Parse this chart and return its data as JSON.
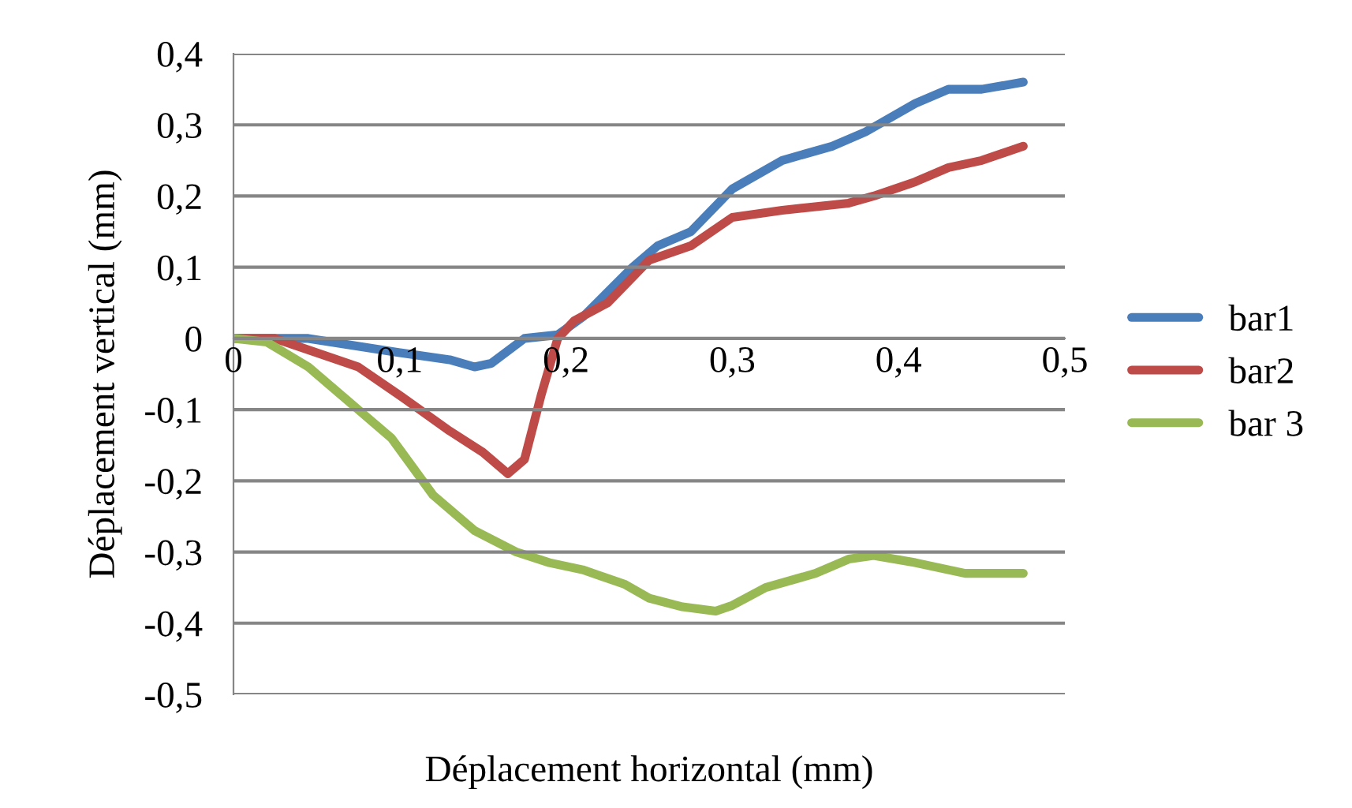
{
  "chart_data": {
    "type": "line",
    "xlabel": "Déplacement horizontal (mm)",
    "ylabel": "Déplacement vertical (mm)",
    "xlim": [
      0,
      0.5
    ],
    "ylim": [
      -0.5,
      0.4
    ],
    "xticks": [
      {
        "value": 0,
        "label": "0"
      },
      {
        "value": 0.1,
        "label": "0,1"
      },
      {
        "value": 0.2,
        "label": "0,2"
      },
      {
        "value": 0.3,
        "label": "0,3"
      },
      {
        "value": 0.4,
        "label": "0,4"
      },
      {
        "value": 0.5,
        "label": "0,5"
      }
    ],
    "yticks": [
      {
        "value": -0.5,
        "label": "-0,5"
      },
      {
        "value": -0.4,
        "label": "-0,4"
      },
      {
        "value": -0.3,
        "label": "-0,3"
      },
      {
        "value": -0.2,
        "label": "-0,2"
      },
      {
        "value": -0.1,
        "label": "-0,1"
      },
      {
        "value": 0,
        "label": "0"
      },
      {
        "value": 0.1,
        "label": "0,1"
      },
      {
        "value": 0.2,
        "label": "0,2"
      },
      {
        "value": 0.3,
        "label": "0,3"
      },
      {
        "value": 0.4,
        "label": "0,4"
      }
    ],
    "grid": "y",
    "legend": "right",
    "marker": "none",
    "line_style": "solid",
    "series": [
      {
        "name": "bar1",
        "color": "#4a7ebb",
        "x": [
          0,
          0.045,
          0.1,
          0.13,
          0.145,
          0.155,
          0.175,
          0.195,
          0.21,
          0.24,
          0.255,
          0.275,
          0.3,
          0.33,
          0.36,
          0.38,
          0.41,
          0.43,
          0.45,
          0.475
        ],
        "values": [
          0,
          0,
          -0.02,
          -0.03,
          -0.04,
          -0.035,
          0,
          0.005,
          0.03,
          0.1,
          0.13,
          0.15,
          0.21,
          0.25,
          0.27,
          0.29,
          0.33,
          0.35,
          0.35,
          0.36
        ]
      },
      {
        "name": "bar2",
        "color": "#be4b48",
        "x": [
          0,
          0.025,
          0.05,
          0.075,
          0.1,
          0.13,
          0.15,
          0.165,
          0.175,
          0.185,
          0.195,
          0.205,
          0.225,
          0.25,
          0.275,
          0.3,
          0.33,
          0.37,
          0.385,
          0.41,
          0.43,
          0.45,
          0.475
        ],
        "values": [
          0,
          0,
          -0.02,
          -0.04,
          -0.08,
          -0.13,
          -0.16,
          -0.19,
          -0.17,
          -0.08,
          0,
          0.025,
          0.05,
          0.11,
          0.13,
          0.17,
          0.18,
          0.19,
          0.2,
          0.22,
          0.24,
          0.25,
          0.27
        ]
      },
      {
        "name": "bar 3",
        "color": "#98b954",
        "x": [
          0,
          0.02,
          0.045,
          0.075,
          0.095,
          0.12,
          0.145,
          0.17,
          0.19,
          0.21,
          0.235,
          0.25,
          0.27,
          0.29,
          0.3,
          0.32,
          0.35,
          0.37,
          0.385,
          0.41,
          0.44,
          0.475
        ],
        "values": [
          0,
          -0.005,
          -0.04,
          -0.1,
          -0.14,
          -0.22,
          -0.27,
          -0.3,
          -0.315,
          -0.325,
          -0.345,
          -0.365,
          -0.377,
          -0.383,
          -0.375,
          -0.35,
          -0.33,
          -0.31,
          -0.305,
          -0.315,
          -0.33,
          -0.33
        ]
      }
    ]
  }
}
